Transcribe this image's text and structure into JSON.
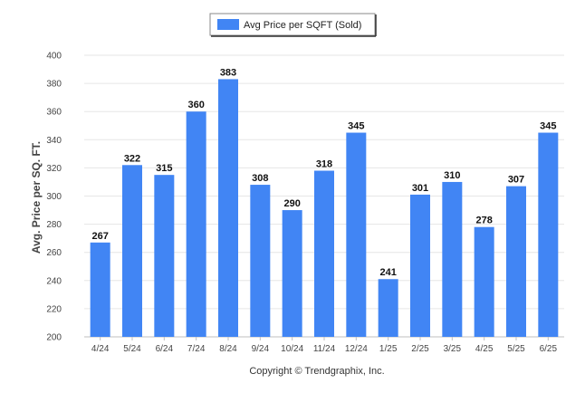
{
  "chart_data": {
    "type": "bar",
    "categories": [
      "4/24",
      "5/24",
      "6/24",
      "7/24",
      "8/24",
      "9/24",
      "10/24",
      "11/24",
      "12/24",
      "1/25",
      "2/25",
      "3/25",
      "4/25",
      "5/25",
      "6/25"
    ],
    "series": [
      {
        "name": "Avg Price per SQFT (Sold)",
        "values": [
          267,
          322,
          315,
          360,
          383,
          308,
          290,
          318,
          345,
          241,
          301,
          310,
          278,
          307,
          345
        ],
        "color": "#4185f4"
      }
    ],
    "ylabel": "Avg. Price per SQ. FT.",
    "xlabel": "",
    "ylim": [
      200,
      400
    ],
    "yticks": [
      200,
      220,
      240,
      260,
      280,
      300,
      320,
      340,
      360,
      380,
      400
    ],
    "grid": true,
    "legend_position": "top-center",
    "data_labels": true
  },
  "footer": "Copyright © Trendgraphix, Inc."
}
